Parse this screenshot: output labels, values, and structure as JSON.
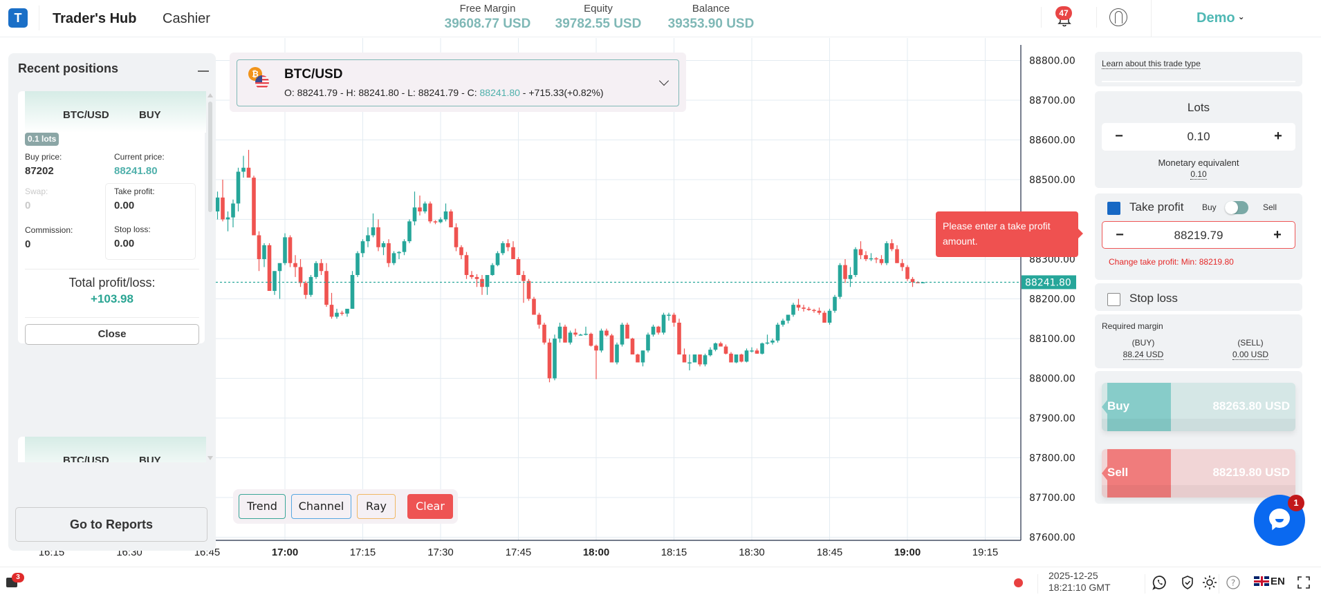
{
  "header": {
    "logo_letter": "T",
    "nav": {
      "hub": "Trader's Hub",
      "cashier": "Cashier"
    },
    "stats": [
      {
        "label": "Free Margin",
        "value": "39608.77 USD"
      },
      {
        "label": "Equity",
        "value": "39782.55 USD"
      },
      {
        "label": "Balance",
        "value": "39353.90 USD"
      }
    ],
    "notifications_count": "47",
    "account": "Demo"
  },
  "instrument": {
    "symbol": "BTC/USD",
    "ohlc_prefix": "O: 88241.79 - H: 88241.80 - L: 88241.79 - C: ",
    "close": "88241.80",
    "change": " - +715.33(+0.82%)"
  },
  "recent_positions": {
    "title": "Recent positions",
    "positions": [
      {
        "symbol": "BTC/USD",
        "side": "BUY",
        "lots": "0.1 lots",
        "buy_price_label": "Buy price:",
        "buy_price": "87202",
        "current_price_label": "Current price:",
        "current_price": "88241.80",
        "swap_label": "Swap:",
        "swap": "0",
        "take_profit_label": "Take profit:",
        "take_profit": "0.00",
        "commission_label": "Commission:",
        "commission": "0",
        "stop_loss_label": "Stop loss:",
        "stop_loss": "0.00",
        "total_pl_label": "Total profit/loss:",
        "total_pl": "+103.98",
        "close_label": "Close"
      },
      {
        "symbol": "BTC/USD",
        "side": "BUY"
      }
    ],
    "reports_label": "Go to Reports"
  },
  "drawing_tools": {
    "trend": "Trend",
    "channel": "Channel",
    "ray": "Ray",
    "clear": "Clear"
  },
  "tooltip": "Please enter a take profit amount.",
  "trade_panel": {
    "learn_link": "Learn about this trade type",
    "lots_title": "Lots",
    "lots_value": "0.10",
    "monetary_label": "Monetary equivalent",
    "monetary_value": "0.10",
    "take_profit_label": "Take profit",
    "toggle_buy": "Buy",
    "toggle_sell": "Sell",
    "take_profit_value": "88219.79",
    "take_profit_error": "Change take profit: Min: 88219.80",
    "stop_loss_label": "Stop loss",
    "required_margin_label": "Required margin",
    "margin_buy_label": "(BUY)",
    "margin_buy": "88.24 USD",
    "margin_sell_label": "(SELL)",
    "margin_sell": "0.00 USD",
    "buy_label": "Buy",
    "buy_price": "88263.80 USD",
    "sell_label": "Sell",
    "sell_price": "88219.80 USD",
    "stepper_minus": "−",
    "stepper_plus": "+"
  },
  "chat": {
    "badge": "1"
  },
  "bottom_bar": {
    "portfolio_badge": "3",
    "date": "2025-12-25",
    "time": "18:21:10 GMT",
    "language": "EN"
  },
  "colors": {
    "accent": "#4fb8b4",
    "up": "#26a69a",
    "down": "#ef5350",
    "error": "#ef5150",
    "brand": "#1a6fc7"
  },
  "chart_data": {
    "type": "candlestick",
    "symbol": "BTC/USD",
    "interval": "1m",
    "current_price": 88241.8,
    "ylim": [
      87600,
      88800
    ],
    "y_ticks": [
      "88800.00",
      "88700.00",
      "88600.00",
      "88500.00",
      "88400.00",
      "88300.00",
      "88200.00",
      "88100.00",
      "88000.00",
      "87900.00",
      "87800.00",
      "87700.00",
      "87600.00"
    ],
    "x_ticks": [
      {
        "label": "16:15",
        "bold": false
      },
      {
        "label": "16:30",
        "bold": false
      },
      {
        "label": "16:45",
        "bold": false
      },
      {
        "label": "17:00",
        "bold": true
      },
      {
        "label": "17:15",
        "bold": false
      },
      {
        "label": "17:30",
        "bold": false
      },
      {
        "label": "17:45",
        "bold": false
      },
      {
        "label": "18:00",
        "bold": true
      },
      {
        "label": "18:15",
        "bold": false
      },
      {
        "label": "18:30",
        "bold": false
      },
      {
        "label": "18:45",
        "bold": false
      },
      {
        "label": "19:00",
        "bold": true
      },
      {
        "label": "19:15",
        "bold": false
      }
    ],
    "start_time": "16:47",
    "candles": [
      [
        88420,
        88470,
        88400,
        88455
      ],
      [
        88455,
        88500,
        88395,
        88400
      ],
      [
        88400,
        88420,
        88370,
        88405
      ],
      [
        88405,
        88450,
        88380,
        88440
      ],
      [
        88440,
        88530,
        88420,
        88520
      ],
      [
        88520,
        88560,
        88505,
        88530
      ],
      [
        88530,
        88575,
        88520,
        88505
      ],
      [
        88505,
        88510,
        88360,
        88360
      ],
      [
        88360,
        88370,
        88270,
        88300
      ],
      [
        88300,
        88340,
        88280,
        88335
      ],
      [
        88335,
        88340,
        88220,
        88220
      ],
      [
        88220,
        88270,
        88210,
        88270
      ],
      [
        88270,
        88275,
        88200,
        88290
      ],
      [
        88290,
        88365,
        88285,
        88355
      ],
      [
        88355,
        88360,
        88280,
        88290
      ],
      [
        88290,
        88310,
        88255,
        88280
      ],
      [
        88280,
        88300,
        88230,
        88240
      ],
      [
        88240,
        88245,
        88200,
        88210
      ],
      [
        88210,
        88260,
        88205,
        88255
      ],
      [
        88255,
        88295,
        88250,
        88290
      ],
      [
        88290,
        88300,
        88260,
        88270
      ],
      [
        88270,
        88290,
        88180,
        88185
      ],
      [
        88185,
        88215,
        88150,
        88155
      ],
      [
        88155,
        88175,
        88150,
        88165
      ],
      [
        88165,
        88170,
        88158,
        88163
      ],
      [
        88163,
        88170,
        88155,
        88175
      ],
      [
        88175,
        88270,
        88175,
        88260
      ],
      [
        88260,
        88320,
        88255,
        88315
      ],
      [
        88315,
        88350,
        88305,
        88345
      ],
      [
        88345,
        88380,
        88330,
        88360
      ],
      [
        88360,
        88415,
        88355,
        88380
      ],
      [
        88380,
        88400,
        88320,
        88330
      ],
      [
        88330,
        88345,
        88310,
        88340
      ],
      [
        88340,
        88350,
        88280,
        88290
      ],
      [
        88290,
        88320,
        88285,
        88315
      ],
      [
        88315,
        88320,
        88300,
        88318
      ],
      [
        88318,
        88350,
        88310,
        88345
      ],
      [
        88345,
        88400,
        88340,
        88395
      ],
      [
        88395,
        88470,
        88385,
        88430
      ],
      [
        88430,
        88460,
        88410,
        88420
      ],
      [
        88420,
        88445,
        88415,
        88440
      ],
      [
        88440,
        88445,
        88390,
        88395
      ],
      [
        88395,
        88398,
        88388,
        88393
      ],
      [
        88393,
        88405,
        88390,
        88400
      ],
      [
        88400,
        88440,
        88395,
        88420
      ],
      [
        88420,
        88425,
        88380,
        88380
      ],
      [
        88380,
        88390,
        88320,
        88330
      ],
      [
        88330,
        88335,
        88300,
        88310
      ],
      [
        88310,
        88318,
        88250,
        88260
      ],
      [
        88260,
        88270,
        88250,
        88255
      ],
      [
        88255,
        88262,
        88230,
        88250
      ],
      [
        88250,
        88260,
        88210,
        88230
      ],
      [
        88230,
        88260,
        88210,
        88260
      ],
      [
        88260,
        88290,
        88258,
        88285
      ],
      [
        88285,
        88320,
        88282,
        88315
      ],
      [
        88315,
        88345,
        88310,
        88340
      ],
      [
        88340,
        88350,
        88320,
        88330
      ],
      [
        88330,
        88345,
        88300,
        88300
      ],
      [
        88300,
        88305,
        88260,
        88260
      ],
      [
        88260,
        88270,
        88190,
        88245
      ],
      [
        88245,
        88250,
        88195,
        88200
      ],
      [
        88200,
        88205,
        88160,
        88160
      ],
      [
        88160,
        88165,
        88125,
        88135
      ],
      [
        88135,
        88140,
        88085,
        88090
      ],
      [
        88090,
        88100,
        87990,
        88000
      ],
      [
        88000,
        88110,
        87995,
        88100
      ],
      [
        88100,
        88140,
        88090,
        88130
      ],
      [
        88130,
        88135,
        88090,
        88090
      ],
      [
        88090,
        88120,
        88085,
        88115
      ],
      [
        88115,
        88125,
        88105,
        88110
      ],
      [
        88110,
        88112,
        88108,
        88110
      ],
      [
        88110,
        88130,
        88108,
        88112
      ],
      [
        88112,
        88115,
        88080,
        88082
      ],
      [
        88082,
        88085,
        87998,
        88070
      ],
      [
        88070,
        88125,
        88065,
        88120
      ],
      [
        88120,
        88125,
        88105,
        88108
      ],
      [
        88108,
        88112,
        88040,
        88040
      ],
      [
        88040,
        88090,
        88035,
        88085
      ],
      [
        88085,
        88140,
        88080,
        88135
      ],
      [
        88135,
        88140,
        88100,
        88100
      ],
      [
        88100,
        88102,
        88060,
        88060
      ],
      [
        88060,
        88062,
        88040,
        88040
      ],
      [
        88040,
        88070,
        88030,
        88070
      ],
      [
        88070,
        88115,
        88065,
        88110
      ],
      [
        88110,
        88135,
        88105,
        88130
      ],
      [
        88130,
        88132,
        88110,
        88115
      ],
      [
        88115,
        88165,
        88110,
        88160
      ],
      [
        88160,
        88165,
        88145,
        88160
      ],
      [
        88160,
        88165,
        88130,
        88140
      ],
      [
        88140,
        88150,
        88060,
        88060
      ],
      [
        88060,
        88075,
        88055,
        88040
      ],
      [
        88040,
        88060,
        88020,
        88040
      ],
      [
        88040,
        88060,
        88040,
        88060
      ],
      [
        88060,
        88060,
        88030,
        88035
      ],
      [
        88035,
        88062,
        88030,
        88058
      ],
      [
        88058,
        88078,
        88055,
        88072
      ],
      [
        88072,
        88090,
        88068,
        88088
      ],
      [
        88088,
        88092,
        88080,
        88080
      ],
      [
        88080,
        88085,
        88060,
        88062
      ],
      [
        88062,
        88066,
        88040,
        88040
      ],
      [
        88040,
        88060,
        88038,
        88060
      ],
      [
        88060,
        88062,
        88040,
        88042
      ],
      [
        88042,
        88075,
        88040,
        88070
      ],
      [
        88070,
        88078,
        88065,
        88070
      ],
      [
        88070,
        88075,
        88062,
        88062
      ],
      [
        88062,
        88090,
        88060,
        88088
      ],
      [
        88088,
        88110,
        88085,
        88090
      ],
      [
        88090,
        88100,
        88085,
        88095
      ],
      [
        88095,
        88140,
        88090,
        88135
      ],
      [
        88135,
        88150,
        88130,
        88145
      ],
      [
        88145,
        88160,
        88138,
        88160
      ],
      [
        88160,
        88190,
        88155,
        88185
      ],
      [
        88185,
        88200,
        88170,
        88178
      ],
      [
        88178,
        88185,
        88168,
        88175
      ],
      [
        88175,
        88180,
        88170,
        88172
      ],
      [
        88172,
        88175,
        88165,
        88170
      ],
      [
        88170,
        88178,
        88160,
        88165
      ],
      [
        88165,
        88170,
        88140,
        88140
      ],
      [
        88140,
        88175,
        88135,
        88170
      ],
      [
        88170,
        88210,
        88165,
        88205
      ],
      [
        88205,
        88290,
        88200,
        88285
      ],
      [
        88285,
        88300,
        88240,
        88250
      ],
      [
        88250,
        88280,
        88230,
        88260
      ],
      [
        88260,
        88330,
        88255,
        88325
      ],
      [
        88325,
        88345,
        88300,
        88310
      ],
      [
        88310,
        88320,
        88295,
        88300
      ],
      [
        88300,
        88315,
        88295,
        88302
      ],
      [
        88302,
        88305,
        88290,
        88300
      ],
      [
        88300,
        88310,
        88285,
        88290
      ],
      [
        88290,
        88345,
        88285,
        88340
      ],
      [
        88340,
        88350,
        88320,
        88325
      ],
      [
        88325,
        88335,
        88290,
        88290
      ],
      [
        88290,
        88300,
        88270,
        88280
      ],
      [
        88280,
        88285,
        88245,
        88250
      ],
      [
        88250,
        88255,
        88230,
        88242
      ],
      [
        88242,
        88244,
        88240,
        88241.8
      ],
      [
        88241.79,
        88241.8,
        88241.79,
        88241.8
      ]
    ]
  }
}
